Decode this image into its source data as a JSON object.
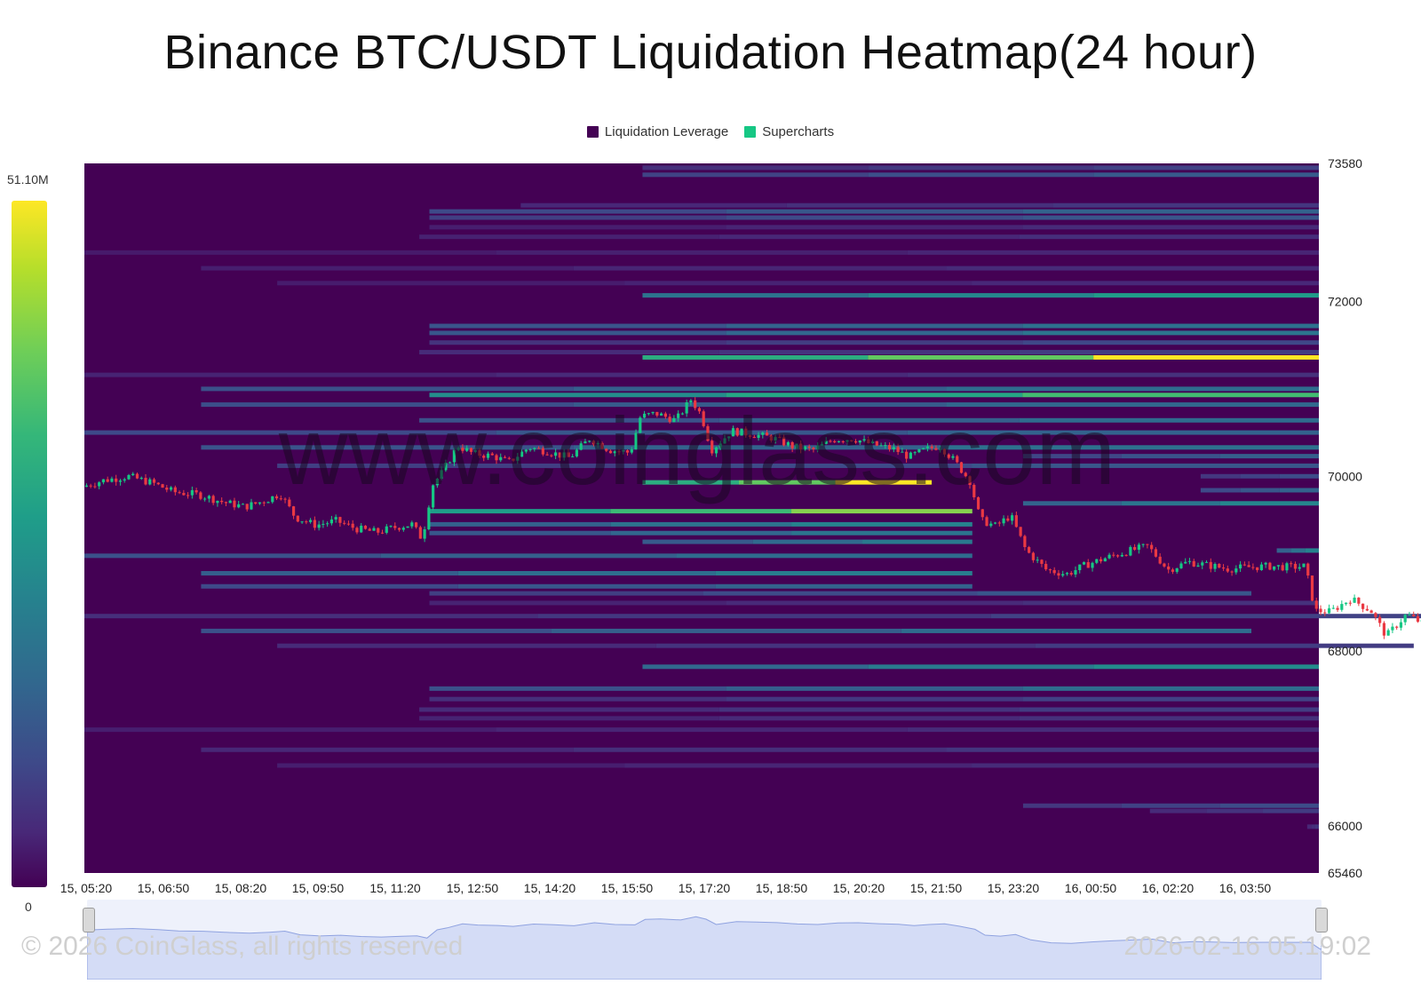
{
  "title": "Binance BTC/USDT Liquidation Heatmap(24 hour)",
  "legend": {
    "items": [
      {
        "label": "Liquidation Leverage",
        "color": "#440154"
      },
      {
        "label": "Supercharts",
        "color": "#16c784"
      }
    ]
  },
  "colorscale": {
    "max_label": "51.10M",
    "min_label": "0",
    "palette": "viridis"
  },
  "watermark": "www.coinglass.com",
  "footer": {
    "copyright": "© 2026 CoinGlass, all rights reserved",
    "timestamp": "2026-02-16 05:19:02"
  },
  "chart_data": {
    "type": "heatmap",
    "title": "Binance BTC/USDT Liquidation Heatmap(24 hour)",
    "x_tick_labels": [
      "15, 05:20",
      "15, 06:50",
      "15, 08:20",
      "15, 09:50",
      "15, 11:20",
      "15, 12:50",
      "15, 14:20",
      "15, 15:50",
      "15, 17:20",
      "15, 18:50",
      "15, 20:20",
      "15, 21:50",
      "15, 23:20",
      "16, 00:50",
      "16, 02:20",
      "16, 03:50"
    ],
    "x_range": [
      "15, 04:50",
      "16, 05:10"
    ],
    "y_tick_labels": [
      "73580",
      "72000",
      "70000",
      "68000",
      "66000",
      "65460"
    ],
    "y_range": [
      65460,
      73580
    ],
    "y_axis_position": "right",
    "background_color": "#440154",
    "candle_up_color": "#16c784",
    "candle_down_color": "#ea3943",
    "liquidation_bands": [
      {
        "price": 73530,
        "start_hour": 11.0,
        "value": 0.22
      },
      {
        "price": 73450,
        "start_hour": 11.0,
        "value": 0.32
      },
      {
        "price": 73100,
        "start_hour": 8.6,
        "value": 0.18
      },
      {
        "price": 73030,
        "start_hour": 6.8,
        "value": 0.36
      },
      {
        "price": 72960,
        "start_hour": 6.8,
        "value": 0.3
      },
      {
        "price": 72850,
        "start_hour": 6.8,
        "value": 0.14
      },
      {
        "price": 72740,
        "start_hour": 6.6,
        "value": 0.15
      },
      {
        "price": 72560,
        "start_hour": 0.0,
        "value": 0.12
      },
      {
        "price": 72380,
        "start_hour": 2.3,
        "value": 0.14
      },
      {
        "price": 72210,
        "start_hour": 3.8,
        "value": 0.13
      },
      {
        "price": 72070,
        "start_hour": 11.0,
        "value": 0.62
      },
      {
        "price": 71720,
        "start_hour": 6.8,
        "value": 0.42
      },
      {
        "price": 71640,
        "start_hour": 6.8,
        "value": 0.44
      },
      {
        "price": 71530,
        "start_hour": 6.8,
        "value": 0.24
      },
      {
        "price": 71420,
        "start_hour": 6.6,
        "value": 0.2
      },
      {
        "price": 71360,
        "start_hour": 11.0,
        "value": 1.0
      },
      {
        "price": 71160,
        "start_hour": 0.0,
        "value": 0.16
      },
      {
        "price": 71000,
        "start_hour": 2.3,
        "value": 0.4
      },
      {
        "price": 70930,
        "start_hour": 6.8,
        "value": 0.78
      },
      {
        "price": 70820,
        "start_hour": 2.3,
        "value": 0.38
      },
      {
        "price": 70640,
        "start_hour": 6.6,
        "value": 0.4
      },
      {
        "price": 70500,
        "start_hour": 0.0,
        "value": 0.36
      },
      {
        "price": 70330,
        "start_hour": 2.3,
        "value": 0.42
      },
      {
        "price": 70230,
        "start_hour": 18.5,
        "value": 0.34
      },
      {
        "price": 70120,
        "start_hour": 3.8,
        "value": 0.3
      },
      {
        "price": 70000,
        "start_hour": 22.0,
        "value": 0.26
      },
      {
        "price": 69930,
        "start_hour": 11.0,
        "value": 1.0,
        "end_hour": 16.7
      },
      {
        "price": 69840,
        "start_hour": 22.0,
        "value": 0.36
      },
      {
        "price": 69690,
        "start_hour": 18.5,
        "value": 0.52
      },
      {
        "price": 69600,
        "start_hour": 6.8,
        "value": 0.9,
        "end_hour": 17.5
      },
      {
        "price": 69450,
        "start_hour": 6.8,
        "value": 0.5,
        "end_hour": 17.5
      },
      {
        "price": 69350,
        "start_hour": 6.8,
        "value": 0.44,
        "end_hour": 17.5
      },
      {
        "price": 69250,
        "start_hour": 11.0,
        "value": 0.46,
        "end_hour": 17.5
      },
      {
        "price": 69150,
        "start_hour": 23.5,
        "value": 0.5
      },
      {
        "price": 69090,
        "start_hour": 0.0,
        "value": 0.4,
        "end_hour": 17.5
      },
      {
        "price": 68970,
        "start_hour": 24.5,
        "value": 0.42
      },
      {
        "price": 68890,
        "start_hour": 2.3,
        "value": 0.48,
        "end_hour": 17.5
      },
      {
        "price": 68740,
        "start_hour": 2.3,
        "value": 0.36,
        "end_hour": 17.5
      },
      {
        "price": 68660,
        "start_hour": 6.8,
        "value": 0.3,
        "end_hour": 23.0
      },
      {
        "price": 68550,
        "start_hour": 6.8,
        "value": 0.16
      },
      {
        "price": 68400,
        "start_hour": 0.0,
        "value": 0.22,
        "end_hour": 26.8
      },
      {
        "price": 68230,
        "start_hour": 2.3,
        "value": 0.4,
        "end_hour": 23.0
      },
      {
        "price": 68060,
        "start_hour": 3.8,
        "value": 0.2,
        "end_hour": 26.2
      },
      {
        "price": 67930,
        "start_hour": 25.7,
        "value": 0.22
      },
      {
        "price": 67820,
        "start_hour": 11.0,
        "value": 0.55
      },
      {
        "price": 67660,
        "start_hour": 25.7,
        "value": 0.62
      },
      {
        "price": 67570,
        "start_hour": 6.8,
        "value": 0.4
      },
      {
        "price": 67450,
        "start_hour": 6.8,
        "value": 0.22
      },
      {
        "price": 67330,
        "start_hour": 6.6,
        "value": 0.2
      },
      {
        "price": 67230,
        "start_hour": 6.6,
        "value": 0.16
      },
      {
        "price": 67100,
        "start_hour": 0.0,
        "value": 0.14
      },
      {
        "price": 66940,
        "start_hour": 25.7,
        "value": 0.36
      },
      {
        "price": 66870,
        "start_hour": 2.3,
        "value": 0.18
      },
      {
        "price": 66780,
        "start_hour": 24.9,
        "value": 0.28
      },
      {
        "price": 66690,
        "start_hour": 3.8,
        "value": 0.14
      },
      {
        "price": 66230,
        "start_hour": 18.5,
        "value": 0.26
      },
      {
        "price": 66170,
        "start_hour": 21.0,
        "value": 0.2
      },
      {
        "price": 65990,
        "start_hour": 24.1,
        "value": 0.18
      },
      {
        "price": 65850,
        "start_hour": 24.9,
        "value": 0.2
      },
      {
        "price": 65680,
        "start_hour": 25.7,
        "value": 0.22
      },
      {
        "price": 65510,
        "start_hour": 25.7,
        "value": 0.24
      }
    ],
    "price_path": [
      [
        0.0,
        69880
      ],
      [
        0.4,
        69950
      ],
      [
        0.9,
        70000
      ],
      [
        1.4,
        69920
      ],
      [
        1.8,
        69820
      ],
      [
        2.3,
        69790
      ],
      [
        2.8,
        69700
      ],
      [
        3.2,
        69650
      ],
      [
        3.6,
        69720
      ],
      [
        3.9,
        69800
      ],
      [
        4.2,
        69530
      ],
      [
        4.6,
        69440
      ],
      [
        5.0,
        69490
      ],
      [
        5.4,
        69400
      ],
      [
        5.8,
        69360
      ],
      [
        6.2,
        69420
      ],
      [
        6.5,
        69450
      ],
      [
        6.7,
        69280
      ],
      [
        6.9,
        69900
      ],
      [
        7.1,
        70050
      ],
      [
        7.4,
        70350
      ],
      [
        7.7,
        70260
      ],
      [
        8.1,
        70230
      ],
      [
        8.4,
        70160
      ],
      [
        8.8,
        70330
      ],
      [
        9.2,
        70280
      ],
      [
        9.6,
        70210
      ],
      [
        10.0,
        70430
      ],
      [
        10.4,
        70300
      ],
      [
        10.8,
        70270
      ],
      [
        11.0,
        70680
      ],
      [
        11.3,
        70720
      ],
      [
        11.7,
        70640
      ],
      [
        12.0,
        70880
      ],
      [
        12.2,
        70700
      ],
      [
        12.4,
        70300
      ],
      [
        12.8,
        70520
      ],
      [
        13.2,
        70480
      ],
      [
        13.6,
        70440
      ],
      [
        14.0,
        70340
      ],
      [
        14.4,
        70300
      ],
      [
        14.8,
        70420
      ],
      [
        15.2,
        70430
      ],
      [
        15.6,
        70360
      ],
      [
        16.0,
        70310
      ],
      [
        16.3,
        70220
      ],
      [
        16.6,
        70300
      ],
      [
        16.9,
        70350
      ],
      [
        17.2,
        70170
      ],
      [
        17.5,
        69940
      ],
      [
        17.7,
        69500
      ],
      [
        18.0,
        69430
      ],
      [
        18.3,
        69550
      ],
      [
        18.6,
        69150
      ],
      [
        19.0,
        68930
      ],
      [
        19.4,
        68880
      ],
      [
        19.8,
        68990
      ],
      [
        20.2,
        69070
      ],
      [
        20.6,
        69140
      ],
      [
        21.0,
        69200
      ],
      [
        21.4,
        68930
      ],
      [
        21.8,
        69020
      ],
      [
        22.2,
        68980
      ],
      [
        22.6,
        68940
      ],
      [
        23.0,
        68960
      ],
      [
        23.4,
        68970
      ],
      [
        23.8,
        68960
      ],
      [
        24.1,
        68970
      ],
      [
        24.3,
        68460
      ],
      [
        24.6,
        68450
      ],
      [
        25.0,
        68600
      ],
      [
        25.4,
        68460
      ],
      [
        25.7,
        68170
      ],
      [
        26.1,
        68420
      ],
      [
        26.4,
        68320
      ],
      [
        26.8,
        68230
      ],
      [
        27.2,
        68330
      ],
      [
        27.6,
        68480
      ],
      [
        28.0,
        68440
      ],
      [
        28.4,
        68630
      ],
      [
        28.8,
        68710
      ],
      [
        29.2,
        68750
      ],
      [
        29.6,
        68830
      ],
      [
        30.0,
        68800
      ],
      [
        30.4,
        68820
      ]
    ]
  }
}
